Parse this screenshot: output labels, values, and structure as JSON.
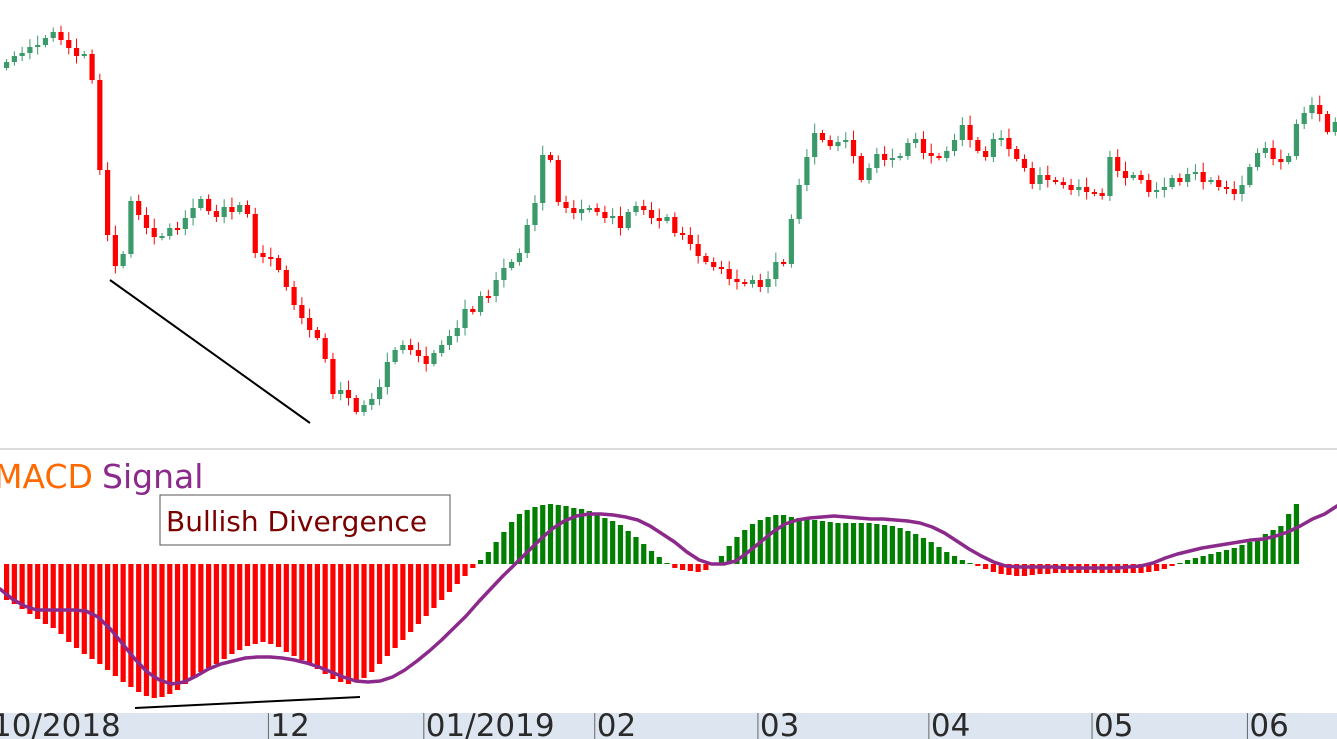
{
  "colors": {
    "bullish": "#3a9a6a",
    "bearish": "#ff0000",
    "hist_pos": "#007f00",
    "hist_neg": "#ff0000",
    "signal": "#8b2a8b",
    "macd_label": "#ff6a00",
    "annotation_text": "#7a0000",
    "axis_bg": "#dde5f0",
    "trendline": "#000000"
  },
  "legend": {
    "macd": "MACD",
    "signal": "Signal"
  },
  "annotation": "Bullish Divergence",
  "x_labels": [
    {
      "label": "10/2018",
      "bar": 0
    },
    {
      "label": "12",
      "bar": 33
    },
    {
      "label": "01/2019",
      "bar": 53
    },
    {
      "label": "02",
      "bar": 75
    },
    {
      "label": "03",
      "bar": 96
    },
    {
      "label": "04",
      "bar": 118
    },
    {
      "label": "05",
      "bar": 139
    },
    {
      "label": "06",
      "bar": 159
    }
  ],
  "chart_data": [
    {
      "type": "candlestick",
      "panel": "price",
      "ylim": [
        0,
        448
      ],
      "grid": false,
      "closes": [
        62,
        56,
        53,
        47,
        45,
        38,
        32,
        40,
        48,
        56,
        54,
        80,
        170,
        235,
        266,
        254,
        201,
        215,
        228,
        237,
        236,
        228,
        229,
        218,
        208,
        199,
        211,
        217,
        207,
        212,
        205,
        214,
        253,
        257,
        258,
        270,
        287,
        305,
        318,
        330,
        338,
        359,
        394,
        390,
        398,
        412,
        405,
        399,
        387,
        362,
        350,
        345,
        350,
        356,
        364,
        353,
        345,
        336,
        328,
        309,
        312,
        296,
        296,
        280,
        268,
        262,
        253,
        225,
        203,
        155,
        160,
        202,
        208,
        213,
        209,
        208,
        212,
        218,
        216,
        228,
        212,
        206,
        210,
        218,
        221,
        217,
        233,
        235,
        244,
        256,
        262,
        267,
        269,
        279,
        282,
        284,
        280,
        287,
        279,
        262,
        264,
        219,
        185,
        157,
        133,
        140,
        146,
        142,
        140,
        156,
        180,
        168,
        154,
        160,
        158,
        156,
        143,
        139,
        153,
        156,
        158,
        151,
        140,
        125,
        140,
        151,
        157,
        139,
        138,
        149,
        159,
        168,
        184,
        175,
        180,
        182,
        185,
        190,
        187,
        192,
        193,
        196,
        157,
        171,
        178,
        175,
        180,
        192,
        190,
        187,
        178,
        182,
        174,
        172,
        182,
        180,
        187,
        189,
        194,
        185,
        167,
        153,
        148,
        159,
        162,
        156,
        124,
        113,
        105,
        114,
        132,
        122,
        97,
        56
      ]
    },
    {
      "type": "bar",
      "panel": "macd",
      "ylim": [
        -140,
        70
      ],
      "grid": false,
      "values": [
        -36,
        -40,
        -45,
        -50,
        -55,
        -60,
        -64,
        -70,
        -78,
        -84,
        -90,
        -95,
        -100,
        -106,
        -112,
        -118,
        -123,
        -128,
        -132,
        -134,
        -133,
        -130,
        -126,
        -120,
        -114,
        -108,
        -104,
        -100,
        -95,
        -90,
        -86,
        -82,
        -80,
        -78,
        -80,
        -83,
        -88,
        -92,
        -96,
        -101,
        -105,
        -110,
        -115,
        -118,
        -120,
        -118,
        -114,
        -108,
        -100,
        -92,
        -84,
        -76,
        -68,
        -60,
        -52,
        -44,
        -36,
        -28,
        -20,
        -12,
        -4,
        4,
        12,
        22,
        32,
        42,
        50,
        54,
        57,
        59,
        60,
        59,
        58,
        56,
        55,
        53,
        50,
        46,
        43,
        39,
        33,
        27,
        20,
        13,
        7,
        1,
        -4,
        -6,
        -7,
        -8,
        -6,
        -1,
        8,
        18,
        27,
        34,
        40,
        44,
        47,
        49,
        49,
        47,
        46,
        45,
        44,
        43,
        42,
        41,
        41,
        41,
        41,
        41,
        40,
        39,
        38,
        36,
        33,
        30,
        26,
        22,
        17,
        12,
        8,
        4,
        1,
        -2,
        -5,
        -8,
        -10,
        -11,
        -12,
        -12,
        -11,
        -10,
        -10,
        -9,
        -9,
        -9,
        -9,
        -9,
        -9,
        -9,
        -9,
        -9,
        -9,
        -9,
        -9,
        -8,
        -7,
        -5,
        -2,
        1,
        4,
        6,
        8,
        10,
        12,
        14,
        16,
        19,
        22,
        26,
        30,
        34,
        38,
        50,
        60
      ]
    },
    {
      "type": "line",
      "panel": "macd",
      "name": "Signal",
      "values": [
        -25,
        -35,
        -42,
        -46,
        -46,
        -46,
        -46,
        -47,
        -53,
        -65,
        -80,
        -95,
        -108,
        -116,
        -120,
        -118,
        -112,
        -105,
        -100,
        -97,
        -94,
        -93,
        -93,
        -94,
        -96,
        -99,
        -103,
        -108,
        -113,
        -117,
        -118,
        -117,
        -113,
        -106,
        -97,
        -87,
        -76,
        -64,
        -52,
        -38,
        -25,
        -12,
        0,
        12,
        24,
        35,
        43,
        48,
        50,
        50,
        49,
        47,
        44,
        38,
        30,
        22,
        12,
        4,
        0,
        0,
        3,
        12,
        22,
        32,
        40,
        44,
        46,
        47,
        48,
        47,
        46,
        45,
        45,
        44,
        43,
        41,
        37,
        31,
        23,
        15,
        8,
        2,
        -2,
        -3,
        -3,
        -3,
        -3,
        -4,
        -4,
        -4,
        -4,
        -4,
        -3,
        -2,
        1,
        6,
        10,
        13,
        16,
        18,
        20,
        22,
        24,
        25,
        28,
        32,
        38,
        45,
        50,
        58
      ]
    },
    {
      "type": "line",
      "panel": "price",
      "name": "",
      "note_trend_up": true,
      "points": [
        [
          110,
          280
        ],
        [
          310,
          423
        ]
      ]
    },
    {
      "type": "line",
      "panel": "macd",
      "name": "",
      "points": [
        [
          135,
          708
        ],
        [
          360,
          697
        ]
      ]
    }
  ]
}
